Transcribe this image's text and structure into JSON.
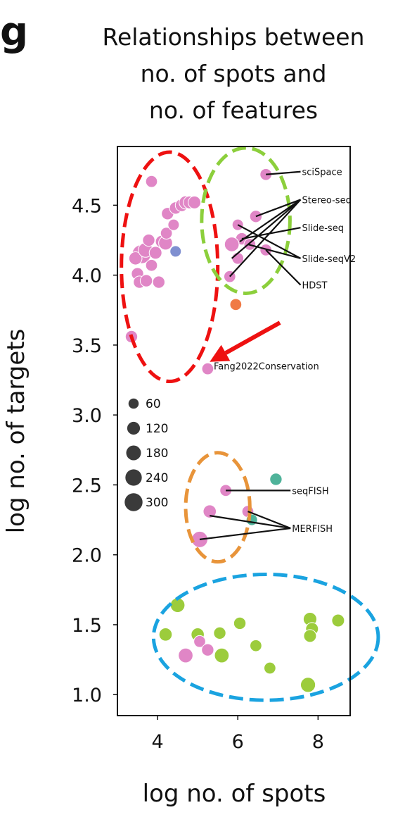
{
  "panel_label": "g",
  "chart_data": {
    "type": "scatter",
    "title_lines": [
      "Relationships between",
      "no. of spots and",
      "no. of features"
    ],
    "xlabel": "log no. of spots",
    "ylabel": "log no. of targets",
    "xlim": [
      3.0,
      8.8
    ],
    "ylim": [
      0.85,
      4.92
    ],
    "xticks": [
      {
        "value": 4,
        "label": "4"
      },
      {
        "value": 6,
        "label": "6"
      },
      {
        "value": 8,
        "label": "8"
      }
    ],
    "yticks": [
      {
        "value": 1.0,
        "label": "1.0"
      },
      {
        "value": 1.5,
        "label": "1.5"
      },
      {
        "value": 2.0,
        "label": "2.0"
      },
      {
        "value": 2.5,
        "label": "2.5"
      },
      {
        "value": 3.0,
        "label": "3.0"
      },
      {
        "value": 3.5,
        "label": "3.5"
      },
      {
        "value": 4.0,
        "label": "4.0"
      },
      {
        "value": 4.5,
        "label": "4.5"
      }
    ],
    "grid": false,
    "size_legend": {
      "placement": "left-middle",
      "entries": [
        {
          "label": "60",
          "size": 60
        },
        {
          "label": "120",
          "size": 120
        },
        {
          "label": "180",
          "size": 180
        },
        {
          "label": "240",
          "size": 240
        },
        {
          "label": "300",
          "size": 300
        }
      ]
    },
    "colors": {
      "pink": "#e086c6",
      "blue": "#7f8fd0",
      "orange": "#f07a45",
      "teal": "#4fb39a",
      "green": "#9ccc3c"
    },
    "points": [
      {
        "x": 3.85,
        "y": 4.67,
        "size": 80,
        "color": "pink"
      },
      {
        "x": 3.6,
        "y": 4.15,
        "size": 300,
        "color": "pink"
      },
      {
        "x": 3.45,
        "y": 4.12,
        "size": 110,
        "color": "pink"
      },
      {
        "x": 3.7,
        "y": 4.18,
        "size": 150,
        "color": "pink"
      },
      {
        "x": 3.95,
        "y": 4.16,
        "size": 100,
        "color": "pink"
      },
      {
        "x": 3.78,
        "y": 4.25,
        "size": 90,
        "color": "pink"
      },
      {
        "x": 4.1,
        "y": 4.24,
        "size": 90,
        "color": "pink"
      },
      {
        "x": 4.2,
        "y": 4.23,
        "size": 130,
        "color": "pink"
      },
      {
        "x": 4.22,
        "y": 4.3,
        "size": 80,
        "color": "pink"
      },
      {
        "x": 4.4,
        "y": 4.36,
        "size": 70,
        "color": "pink"
      },
      {
        "x": 4.25,
        "y": 4.44,
        "size": 90,
        "color": "pink"
      },
      {
        "x": 4.45,
        "y": 4.48,
        "size": 90,
        "color": "pink"
      },
      {
        "x": 4.6,
        "y": 4.5,
        "size": 100,
        "color": "pink"
      },
      {
        "x": 4.7,
        "y": 4.52,
        "size": 110,
        "color": "pink"
      },
      {
        "x": 4.8,
        "y": 4.52,
        "size": 100,
        "color": "pink"
      },
      {
        "x": 4.92,
        "y": 4.52,
        "size": 100,
        "color": "pink"
      },
      {
        "x": 3.5,
        "y": 4.01,
        "size": 90,
        "color": "pink"
      },
      {
        "x": 3.55,
        "y": 3.95,
        "size": 90,
        "color": "pink"
      },
      {
        "x": 3.72,
        "y": 3.96,
        "size": 90,
        "color": "pink"
      },
      {
        "x": 4.03,
        "y": 3.95,
        "size": 90,
        "color": "pink"
      },
      {
        "x": 3.85,
        "y": 4.07,
        "size": 80,
        "color": "pink"
      },
      {
        "x": 3.35,
        "y": 3.56,
        "size": 90,
        "color": "pink"
      },
      {
        "x": 4.45,
        "y": 4.17,
        "size": 70,
        "color": "blue"
      },
      {
        "x": 6.7,
        "y": 4.72,
        "size": 80,
        "color": "pink"
      },
      {
        "x": 6.45,
        "y": 4.42,
        "size": 90,
        "color": "pink"
      },
      {
        "x": 6.0,
        "y": 4.36,
        "size": 70,
        "color": "pink"
      },
      {
        "x": 6.1,
        "y": 4.26,
        "size": 90,
        "color": "pink"
      },
      {
        "x": 5.85,
        "y": 4.22,
        "size": 150,
        "color": "pink"
      },
      {
        "x": 6.3,
        "y": 4.22,
        "size": 80,
        "color": "pink"
      },
      {
        "x": 6.7,
        "y": 4.18,
        "size": 80,
        "color": "pink"
      },
      {
        "x": 6.0,
        "y": 4.12,
        "size": 80,
        "color": "pink"
      },
      {
        "x": 5.8,
        "y": 3.99,
        "size": 80,
        "color": "pink"
      },
      {
        "x": 5.95,
        "y": 3.79,
        "size": 80,
        "color": "orange"
      },
      {
        "x": 5.25,
        "y": 3.33,
        "size": 80,
        "color": "pink"
      },
      {
        "x": 6.95,
        "y": 2.54,
        "size": 90,
        "color": "teal"
      },
      {
        "x": 5.7,
        "y": 2.46,
        "size": 80,
        "color": "pink"
      },
      {
        "x": 5.3,
        "y": 2.31,
        "size": 110,
        "color": "pink"
      },
      {
        "x": 6.25,
        "y": 2.31,
        "size": 80,
        "color": "pink"
      },
      {
        "x": 6.35,
        "y": 2.25,
        "size": 70,
        "color": "teal"
      },
      {
        "x": 5.05,
        "y": 2.11,
        "size": 200,
        "color": "pink"
      },
      {
        "x": 4.5,
        "y": 1.64,
        "size": 150,
        "color": "green"
      },
      {
        "x": 6.05,
        "y": 1.51,
        "size": 90,
        "color": "green"
      },
      {
        "x": 7.8,
        "y": 1.54,
        "size": 120,
        "color": "green"
      },
      {
        "x": 8.5,
        "y": 1.53,
        "size": 100,
        "color": "green"
      },
      {
        "x": 7.85,
        "y": 1.47,
        "size": 100,
        "color": "green"
      },
      {
        "x": 4.2,
        "y": 1.43,
        "size": 110,
        "color": "green"
      },
      {
        "x": 5.0,
        "y": 1.43,
        "size": 110,
        "color": "green"
      },
      {
        "x": 5.55,
        "y": 1.44,
        "size": 90,
        "color": "green"
      },
      {
        "x": 7.8,
        "y": 1.42,
        "size": 100,
        "color": "green"
      },
      {
        "x": 5.05,
        "y": 1.38,
        "size": 80,
        "color": "pink"
      },
      {
        "x": 6.45,
        "y": 1.35,
        "size": 80,
        "color": "green"
      },
      {
        "x": 5.25,
        "y": 1.32,
        "size": 90,
        "color": "pink"
      },
      {
        "x": 4.7,
        "y": 1.28,
        "size": 150,
        "color": "pink"
      },
      {
        "x": 5.6,
        "y": 1.28,
        "size": 150,
        "color": "green"
      },
      {
        "x": 6.8,
        "y": 1.19,
        "size": 80,
        "color": "green"
      },
      {
        "x": 7.75,
        "y": 1.07,
        "size": 160,
        "color": "green"
      }
    ],
    "annotations": [
      {
        "text": "sciSpace",
        "label_x": 7.6,
        "label_y": 4.74,
        "targets": [
          [
            6.7,
            4.72
          ]
        ]
      },
      {
        "text": "Stereo-seq",
        "label_x": 7.6,
        "label_y": 4.54,
        "targets": [
          [
            6.45,
            4.42
          ],
          [
            6.05,
            4.24
          ],
          [
            5.85,
            4.12
          ],
          [
            5.8,
            3.99
          ]
        ]
      },
      {
        "text": "Slide-seq",
        "label_x": 7.6,
        "label_y": 4.34,
        "targets": [
          [
            6.1,
            4.26
          ]
        ]
      },
      {
        "text": "Slide-seqV2",
        "label_x": 7.6,
        "label_y": 4.12,
        "targets": [
          [
            6.0,
            4.36
          ],
          [
            6.25,
            4.22
          ]
        ]
      },
      {
        "text": "HDST",
        "label_x": 7.6,
        "label_y": 3.93,
        "targets": [
          [
            6.7,
            4.18
          ]
        ]
      },
      {
        "text": "Fang2022Conservation",
        "label_x": 5.4,
        "label_y": 3.35,
        "targets": []
      },
      {
        "text": "seqFISH",
        "label_x": 7.35,
        "label_y": 2.46,
        "targets": [
          [
            5.7,
            2.46
          ]
        ]
      },
      {
        "text": "MERFISH",
        "label_x": 7.35,
        "label_y": 2.19,
        "targets": [
          [
            5.3,
            2.28
          ],
          [
            6.25,
            2.31
          ],
          [
            5.05,
            2.11
          ]
        ]
      }
    ],
    "highlight_ellipses": [
      {
        "color": "#ee1111",
        "cx": 4.3,
        "cy": 4.06,
        "rx": 1.2,
        "ry": 0.82
      },
      {
        "color": "#8ccf3c",
        "cx": 6.2,
        "cy": 4.39,
        "rx": 1.1,
        "ry": 0.52
      },
      {
        "color": "#e8943a",
        "cx": 5.5,
        "cy": 2.34,
        "rx": 0.8,
        "ry": 0.39
      },
      {
        "color": "#1aa3e0",
        "cx": 6.7,
        "cy": 1.41,
        "rx": 2.8,
        "ry": 0.45
      }
    ],
    "highlight_arrow": {
      "color": "#ee1111",
      "from": [
        7.05,
        3.66
      ],
      "to": [
        5.3,
        3.38
      ]
    }
  }
}
